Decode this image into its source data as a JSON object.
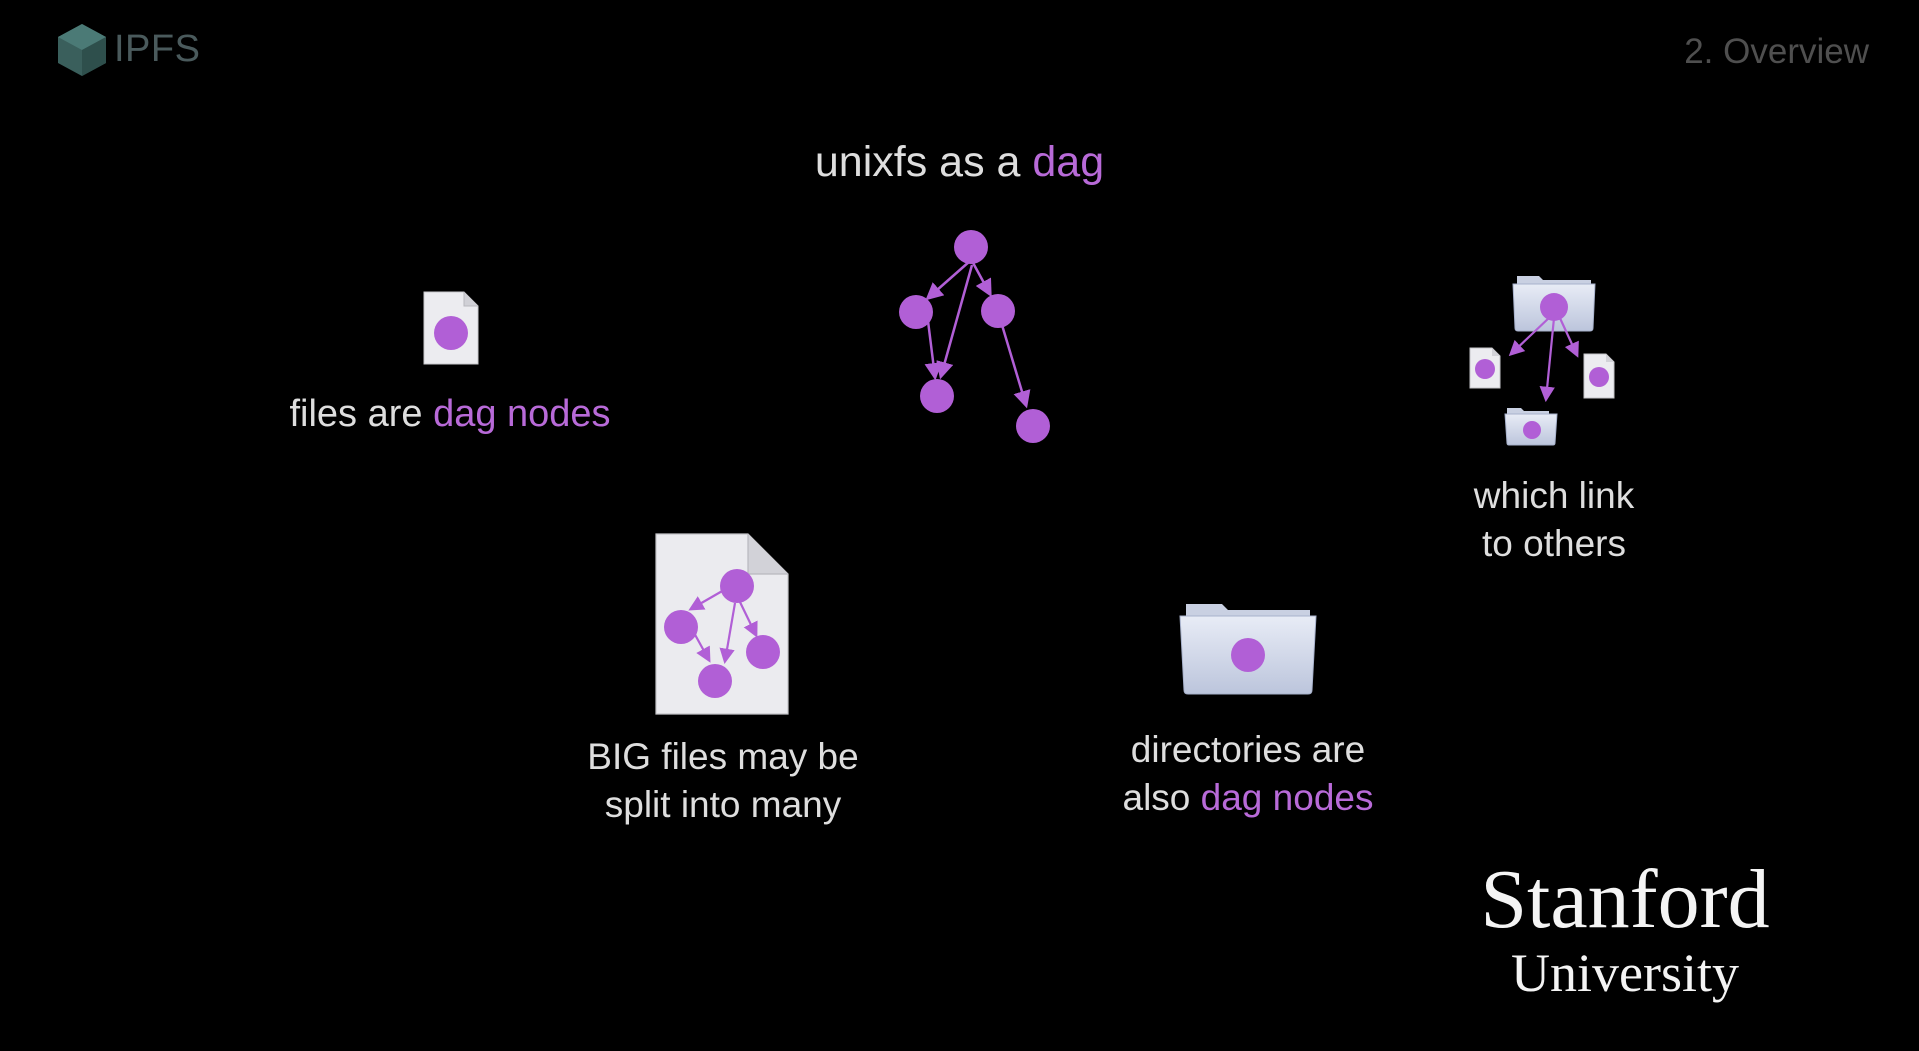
{
  "header": {
    "logo_text": "IPFS",
    "section_label": "2. Overview"
  },
  "title": {
    "prefix": "unixfs as a ",
    "accent": "dag"
  },
  "files_caption": {
    "prefix": "files are ",
    "accent": "dag nodes"
  },
  "big_caption": {
    "line1": "BIG files may be",
    "line2": "split into many"
  },
  "dir_caption": {
    "line1": "directories are",
    "line2_prefix": "also ",
    "line2_accent": "dag nodes"
  },
  "link_caption": {
    "line1": "which link",
    "line2": "to others"
  },
  "university": {
    "name": "Stanford",
    "sub": "University"
  },
  "colors": {
    "background": "#000000",
    "accent_purple": "#b86ad8",
    "text": "#dedede",
    "logo_teal": "#3f6a66"
  },
  "icons": [
    "ipfs-cube-icon",
    "file-node-icon",
    "dag-graph-icon",
    "big-file-dag-icon",
    "folder-node-icon",
    "folder-links-icon"
  ]
}
